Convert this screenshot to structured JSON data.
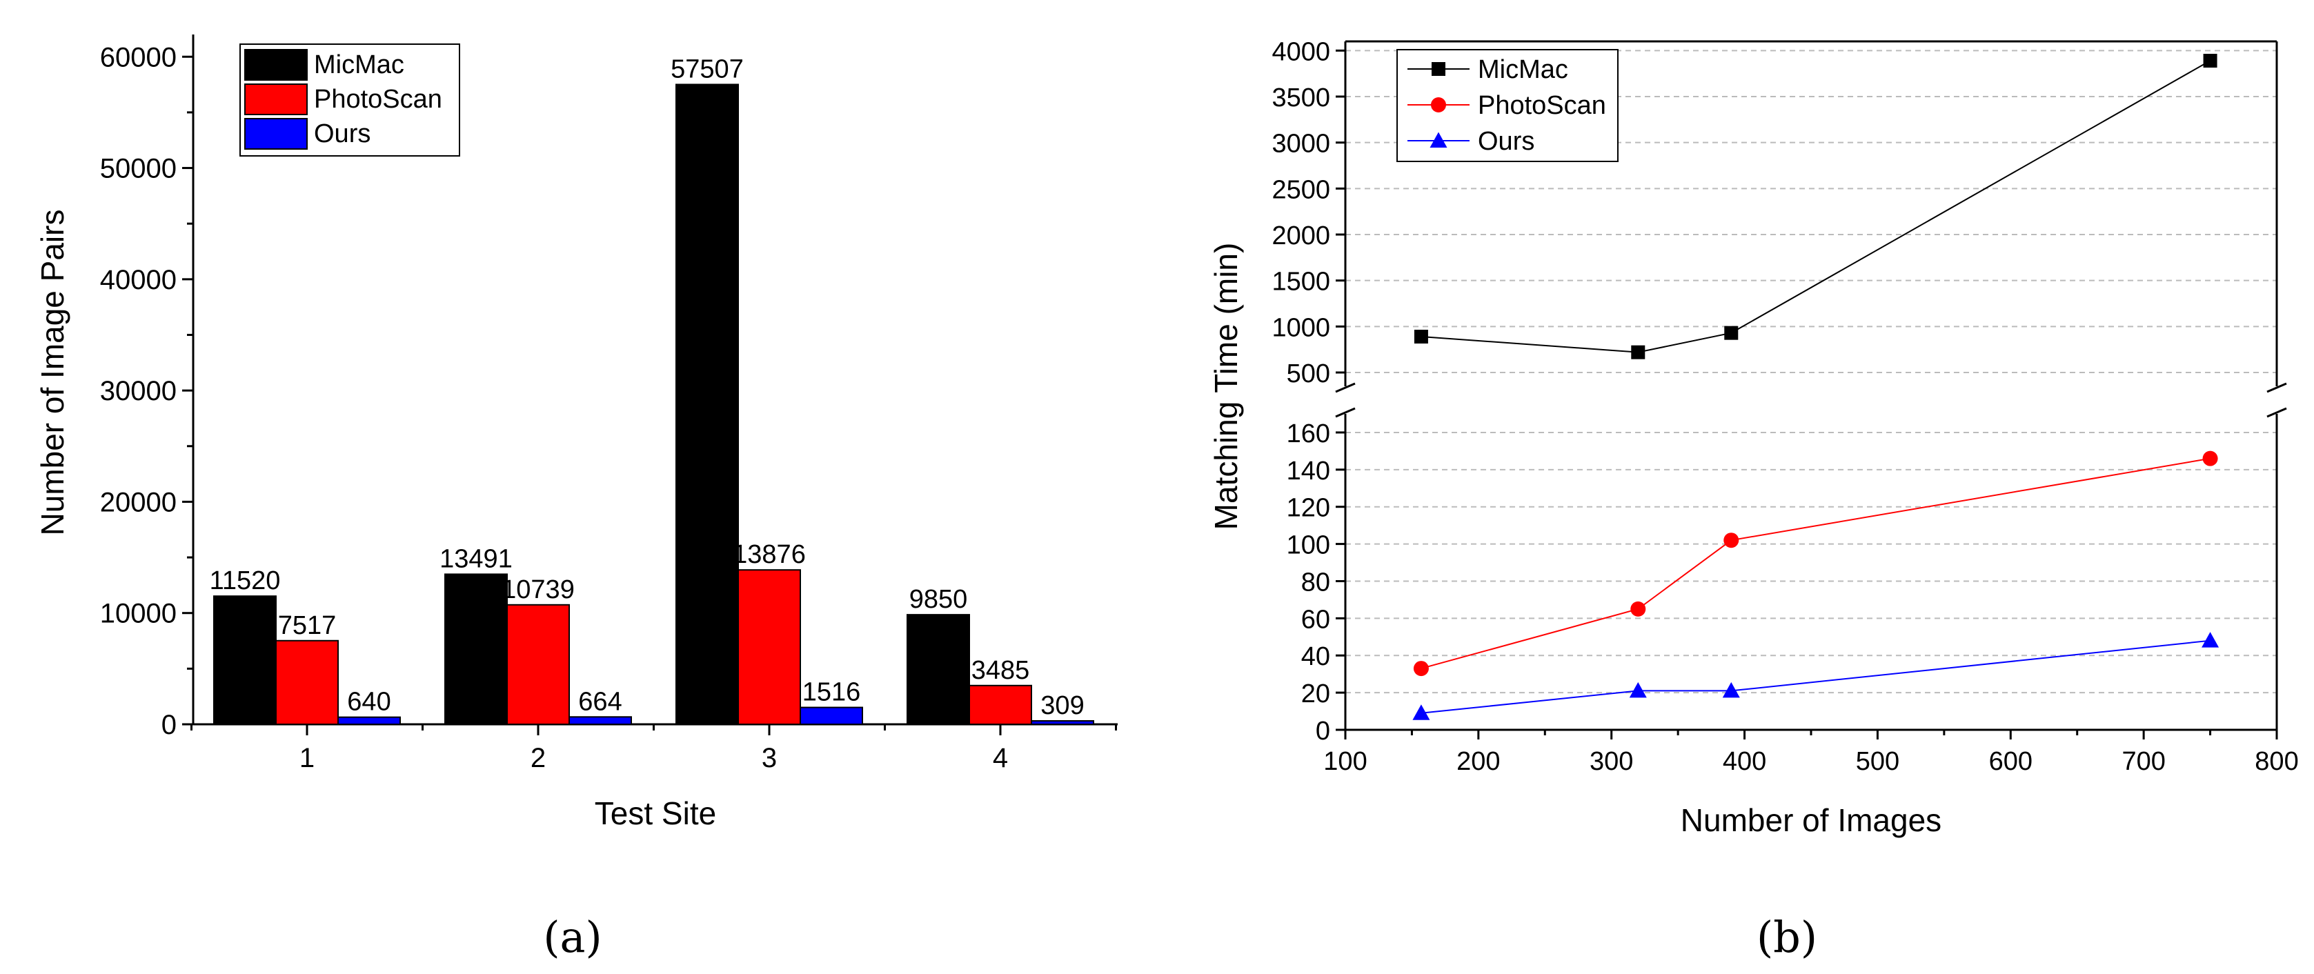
{
  "chart_data": [
    {
      "id": "a",
      "type": "bar",
      "caption": "(a)",
      "title": "",
      "xlabel": "Test Site",
      "ylabel": "Number of Image Pairs",
      "ylim": [
        0,
        62000
      ],
      "yticks": [
        0,
        10000,
        20000,
        30000,
        40000,
        50000,
        60000
      ],
      "categories": [
        "1",
        "2",
        "3",
        "4"
      ],
      "series": [
        {
          "name": "MicMac",
          "color": "#000000",
          "values": [
            11520,
            13491,
            57507,
            9850
          ]
        },
        {
          "name": "PhotoScan",
          "color": "#ff0000",
          "values": [
            7517,
            10739,
            13876,
            3485
          ]
        },
        {
          "name": "Ours",
          "color": "#0000ff",
          "values": [
            640,
            664,
            1516,
            309
          ]
        }
      ],
      "legend": "top-left",
      "grid": false
    },
    {
      "id": "b",
      "type": "line",
      "caption": "(b)",
      "title": "",
      "xlabel": "Number of Images",
      "ylabel": "Matching Time (min)",
      "xlim": [
        100,
        800
      ],
      "xticks": [
        100,
        200,
        300,
        400,
        500,
        600,
        700,
        800
      ],
      "y_break": true,
      "ylim_lower": [
        0,
        170
      ],
      "ylim_upper": [
        350,
        4100
      ],
      "yticks_lower": [
        0,
        20,
        40,
        60,
        80,
        100,
        120,
        140,
        160
      ],
      "yticks_upper": [
        500,
        1000,
        1500,
        2000,
        2500,
        3000,
        3500,
        4000
      ],
      "series": [
        {
          "name": "MicMac",
          "color": "#000000",
          "marker": "square",
          "x": [
            157,
            320,
            390,
            750
          ],
          "y": [
            890,
            720,
            930,
            3890
          ]
        },
        {
          "name": "PhotoScan",
          "color": "#ff0000",
          "marker": "circle",
          "x": [
            157,
            320,
            390,
            750
          ],
          "y": [
            33,
            65,
            102,
            146
          ]
        },
        {
          "name": "Ours",
          "color": "#0000ff",
          "marker": "triangle",
          "x": [
            157,
            320,
            390,
            750
          ],
          "y": [
            9,
            21,
            21,
            48
          ]
        }
      ],
      "legend": "top-left",
      "grid": true
    }
  ]
}
